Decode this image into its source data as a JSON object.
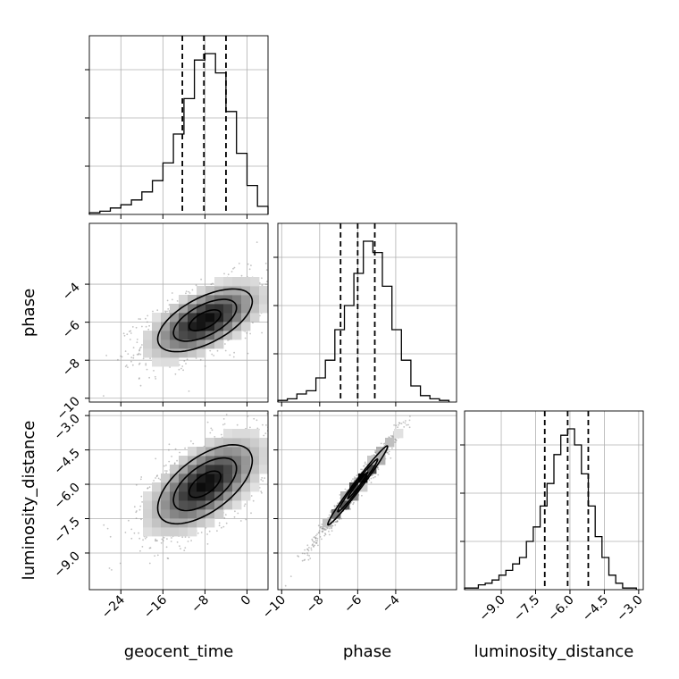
{
  "chart_data": {
    "type": "corner",
    "parameters": [
      "geocent_time",
      "phase",
      "luminosity_distance"
    ],
    "axes": {
      "geocent_time": {
        "range": [
          -30,
          4
        ],
        "ticks": [
          -24,
          -16,
          -8,
          0
        ],
        "tick_labels": [
          "−24",
          "−16",
          "−8",
          "0"
        ]
      },
      "phase": {
        "range": [
          -10.2,
          -0.8
        ],
        "ticks": [
          -10,
          -8,
          -6,
          -4
        ],
        "tick_labels": [
          "−10",
          "−8",
          "−6",
          "−4"
        ]
      },
      "luminosity_distance": {
        "range": [
          -10.6,
          -2.8
        ],
        "ticks": [
          -9.0,
          -7.5,
          -6.0,
          -4.5,
          -3.0
        ],
        "tick_labels": [
          "−9.0",
          "−7.5",
          "−6.0",
          "−4.5",
          "−3.0"
        ]
      }
    },
    "grid": true,
    "histograms": {
      "geocent_time": {
        "edges": [
          -30,
          -28,
          -26,
          -24,
          -22,
          -20,
          -18,
          -16,
          -14,
          -12,
          -10,
          -8,
          -6,
          -4,
          -2,
          0,
          2,
          4
        ],
        "counts": [
          0.01,
          0.02,
          0.04,
          0.06,
          0.09,
          0.14,
          0.21,
          0.32,
          0.5,
          0.72,
          0.96,
          1.0,
          0.88,
          0.64,
          0.38,
          0.18,
          0.05
        ],
        "quantiles": [
          -12.3,
          -8.2,
          -4.0
        ]
      },
      "phase": {
        "edges": [
          -10.2,
          -9.7,
          -9.2,
          -8.7,
          -8.2,
          -7.7,
          -7.2,
          -6.7,
          -6.2,
          -5.7,
          -5.2,
          -4.7,
          -4.2,
          -3.7,
          -3.2,
          -2.7,
          -2.2,
          -1.7,
          -1.2
        ],
        "counts": [
          0.01,
          0.02,
          0.05,
          0.07,
          0.15,
          0.26,
          0.45,
          0.6,
          0.8,
          1.0,
          0.93,
          0.72,
          0.45,
          0.26,
          0.1,
          0.04,
          0.02,
          0.01
        ],
        "quantiles": [
          -6.9,
          -6.0,
          -5.1
        ]
      },
      "luminosity_distance": {
        "edges": [
          -10.6,
          -10.3,
          -10.0,
          -9.7,
          -9.4,
          -9.1,
          -8.8,
          -8.5,
          -8.2,
          -7.9,
          -7.6,
          -7.3,
          -7.0,
          -6.7,
          -6.4,
          -6.1,
          -5.8,
          -5.5,
          -5.2,
          -4.9,
          -4.6,
          -4.3,
          -4.0,
          -3.7,
          -3.4,
          -3.1
        ],
        "counts": [
          0.01,
          0.01,
          0.03,
          0.04,
          0.06,
          0.09,
          0.12,
          0.16,
          0.2,
          0.3,
          0.39,
          0.52,
          0.66,
          0.84,
          0.96,
          1.0,
          0.9,
          0.72,
          0.52,
          0.33,
          0.2,
          0.09,
          0.04,
          0.01,
          0.01
        ],
        "quantiles": [
          -7.1,
          -6.1,
          -5.2
        ]
      }
    },
    "scatter_panels": [
      {
        "x": "geocent_time",
        "y": "phase",
        "center": [
          -8,
          -5.9
        ],
        "sd": [
          6,
          1.1
        ],
        "corr": 0.6
      },
      {
        "x": "geocent_time",
        "y": "luminosity_distance",
        "center": [
          -8,
          -6.0
        ],
        "sd": [
          6,
          1.15
        ],
        "corr": 0.6
      },
      {
        "x": "phase",
        "y": "luminosity_distance",
        "center": [
          -6,
          -6.05
        ],
        "sd": [
          1.05,
          1.15
        ],
        "corr": 0.985
      }
    ],
    "contour_levels": [
      0.5,
      1.0,
      1.5
    ]
  }
}
